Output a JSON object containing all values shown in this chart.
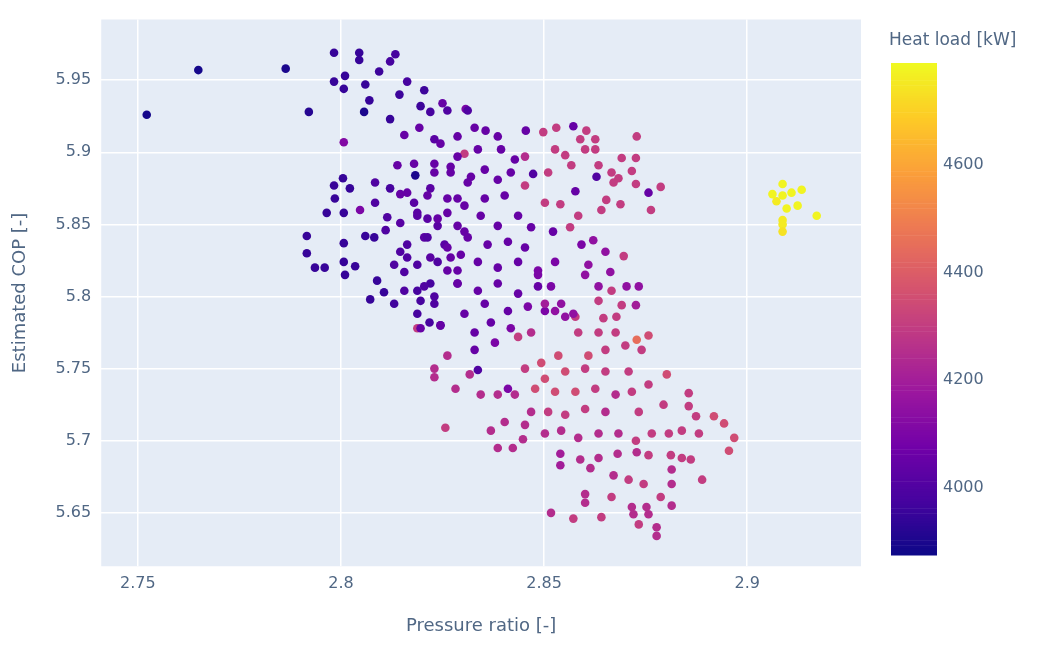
{
  "chart_data": {
    "type": "scatter",
    "xlabel": "Pressure ratio [-]",
    "ylabel": "Estimated COP [-]",
    "clabel": "Heat load [kW]",
    "xlim": [
      2.741,
      2.928
    ],
    "xticks": [
      2.75,
      2.8,
      2.85,
      2.9
    ],
    "ylim": [
      5.613,
      5.992
    ],
    "yticks": [
      5.65,
      5.7,
      5.75,
      5.8,
      5.85,
      5.9,
      5.95
    ],
    "clim": [
      3875,
      4790
    ],
    "cticks": [
      4000,
      4200,
      4400,
      4600
    ],
    "grid": true,
    "legend": false,
    "marker": "circle",
    "x": [
      2.7522,
      2.7649,
      2.7864,
      2.7921,
      2.7983,
      2.8045,
      2.8045,
      2.7983,
      2.801,
      2.8007,
      2.806,
      2.807,
      2.8057,
      2.8134,
      2.8121,
      2.8094,
      2.8163,
      2.8144,
      2.8205,
      2.8196,
      2.8007,
      2.822,
      2.8121,
      2.8156,
      2.8193,
      2.825,
      2.8307,
      2.8287,
      2.823,
      2.8005,
      2.7983,
      2.8022,
      2.7985,
      2.8007,
      2.7965,
      2.8047,
      2.7916,
      2.7916,
      2.7936,
      2.796,
      2.8007,
      2.8007,
      2.801,
      2.8035,
      2.806,
      2.8082,
      2.8084,
      2.8121,
      2.8146,
      2.818,
      2.8139,
      2.8183,
      2.8084,
      2.8114,
      2.811,
      2.8089,
      2.8072,
      2.8106,
      2.8131,
      2.8146,
      2.8163,
      2.8131,
      2.8156,
      2.8188,
      2.8196,
      2.822,
      2.8188,
      2.8218,
      2.8245,
      2.8188,
      2.823,
      2.818,
      2.8188,
      2.8213,
      2.822,
      2.823,
      2.827,
      2.8205,
      2.8238,
      2.8255,
      2.822,
      2.8262,
      2.8287,
      2.832,
      2.8304,
      2.827,
      2.8287,
      2.8262,
      2.8304,
      2.8295,
      2.8262,
      2.8312,
      2.8329,
      2.8356,
      2.8386,
      2.8455,
      2.8245,
      2.8287,
      2.8337,
      2.8394,
      2.8428,
      2.8453,
      2.8473,
      2.823,
      2.827,
      2.8312,
      2.8354,
      2.8386,
      2.8418,
      2.8163,
      2.8213,
      2.8262,
      2.8304,
      2.8354,
      2.8403,
      2.8453,
      2.8146,
      2.8188,
      2.8238,
      2.8287,
      2.8344,
      2.8386,
      2.8436,
      2.8468,
      2.8502,
      2.854,
      2.8163,
      2.8213,
      2.8262,
      2.8312,
      2.8361,
      2.8411,
      2.8453,
      2.8522,
      2.8188,
      2.8238,
      2.8287,
      2.8337,
      2.8386,
      2.8436,
      2.8485,
      2.8527,
      2.8156,
      2.8205,
      2.823,
      2.8287,
      2.8337,
      2.8386,
      2.8436,
      2.8485,
      2.8354,
      2.8411,
      2.846,
      2.8502,
      2.8196,
      2.8245,
      2.8304,
      2.8329,
      2.8369,
      2.8418,
      2.8468,
      2.8329,
      2.8379,
      2.8436,
      2.8498,
      2.853,
      2.8572,
      2.8604,
      2.8626,
      2.8589,
      2.8728,
      2.8527,
      2.8552,
      2.8601,
      2.8626,
      2.8691,
      2.8726,
      2.851,
      2.8567,
      2.8634,
      2.8666,
      2.8716,
      2.8683,
      2.8671,
      2.8726,
      2.8787,
      2.8757,
      2.8577,
      2.8629,
      2.8653,
      2.8688,
      2.8641,
      2.8763,
      2.8584,
      2.8564,
      2.8592,
      2.8621,
      2.8651,
      2.8696,
      2.8609,
      2.8663,
      2.8733,
      2.8703,
      2.8634,
      2.8666,
      2.8726,
      2.8691,
      2.8634,
      2.8678,
      2.8646,
      2.8577,
      2.8584,
      2.8634,
      2.8676,
      2.8757,
      2.8728,
      2.874,
      2.87,
      2.8651,
      2.8609,
      2.8535,
      2.8493,
      2.8453,
      2.8502,
      2.8552,
      2.8601,
      2.8651,
      2.8708,
      2.8802,
      2.8757,
      2.8716,
      2.8676,
      2.8626,
      2.8577,
      2.8527,
      2.8478,
      2.8428,
      2.8386,
      2.8344,
      2.8411,
      2.8317,
      2.8337,
      2.8262,
      2.823,
      2.823,
      2.8282,
      2.8257,
      2.8468,
      2.851,
      2.8552,
      2.8601,
      2.8651,
      2.8733,
      2.8794,
      2.8856,
      2.8856,
      2.8874,
      2.8918,
      2.8943,
      2.8968,
      2.8955,
      2.8839,
      2.8881,
      2.8807,
      2.8765,
      2.8726,
      2.8683,
      2.8634,
      2.8584,
      2.8542,
      2.8502,
      2.8453,
      2.8403,
      2.8369,
      2.8386,
      2.8423,
      2.8448,
      2.854,
      2.854,
      2.8589,
      2.8634,
      2.8681,
      2.8728,
      2.8757,
      2.8812,
      2.8839,
      2.8861,
      2.8614,
      2.8671,
      2.8708,
      2.8745,
      2.8814,
      2.8814,
      2.8889,
      2.8787,
      2.8814,
      2.8601,
      2.8601,
      2.8666,
      2.8716,
      2.872,
      2.8752,
      2.8757,
      2.8733,
      2.8777,
      2.8777,
      2.8517,
      2.8572,
      2.8641,
      2.8485,
      2.8517,
      2.8542,
      2.8572,
      2.8552,
      2.8527,
      2.8502,
      2.8601,
      2.9062,
      2.9087,
      2.9087,
      2.9109,
      2.9134,
      2.9072,
      2.9097,
      2.9124,
      2.9171,
      2.9087,
      2.9087,
      2.9087
    ],
    "values": [
      5.926,
      5.957,
      5.958,
      5.928,
      5.969,
      5.969,
      5.964,
      5.949,
      5.953,
      5.944,
      5.947,
      5.936,
      5.928,
      5.968,
      5.963,
      5.956,
      5.949,
      5.94,
      5.943,
      5.932,
      5.907,
      5.928,
      5.923,
      5.912,
      5.917,
      5.934,
      5.93,
      5.911,
      5.909,
      5.882,
      5.877,
      5.875,
      5.868,
      5.858,
      5.858,
      5.86,
      5.842,
      5.83,
      5.82,
      5.82,
      5.837,
      5.824,
      5.815,
      5.821,
      5.842,
      5.841,
      5.879,
      5.875,
      5.871,
      5.892,
      5.891,
      5.884,
      5.865,
      5.855,
      5.846,
      5.811,
      5.798,
      5.803,
      5.822,
      5.831,
      5.827,
      5.795,
      5.817,
      5.804,
      5.797,
      5.809,
      5.788,
      5.782,
      5.78,
      5.778,
      5.8,
      5.865,
      5.856,
      5.854,
      5.875,
      5.892,
      5.89,
      5.841,
      5.849,
      5.836,
      5.827,
      5.858,
      5.868,
      5.883,
      5.899,
      5.827,
      5.809,
      5.818,
      5.845,
      5.829,
      5.929,
      5.929,
      5.917,
      5.915,
      5.911,
      5.915,
      5.906,
      5.897,
      5.902,
      5.902,
      5.895,
      5.897,
      5.885,
      5.886,
      5.886,
      5.879,
      5.888,
      5.881,
      5.886,
      5.872,
      5.87,
      5.868,
      5.863,
      5.868,
      5.87,
      5.877,
      5.851,
      5.858,
      5.854,
      5.849,
      5.856,
      5.849,
      5.856,
      5.848,
      5.865,
      5.864,
      5.836,
      5.841,
      5.834,
      5.841,
      5.836,
      5.838,
      5.834,
      5.845,
      5.822,
      5.824,
      5.818,
      5.824,
      5.82,
      5.824,
      5.818,
      5.824,
      5.804,
      5.807,
      5.795,
      5.809,
      5.804,
      5.809,
      5.802,
      5.807,
      5.795,
      5.79,
      5.793,
      5.79,
      5.778,
      5.78,
      5.788,
      5.775,
      5.782,
      5.778,
      5.775,
      5.763,
      5.768,
      5.772,
      5.914,
      5.917,
      5.918,
      5.915,
      5.909,
      5.909,
      5.911,
      5.902,
      5.898,
      5.902,
      5.902,
      5.896,
      5.896,
      5.886,
      5.891,
      5.891,
      5.886,
      5.887,
      5.882,
      5.879,
      5.878,
      5.876,
      5.872,
      5.873,
      5.883,
      5.867,
      5.864,
      5.86,
      5.86,
      5.856,
      5.848,
      5.836,
      5.839,
      5.831,
      5.828,
      5.822,
      5.817,
      5.807,
      5.807,
      5.807,
      5.804,
      5.794,
      5.794,
      5.797,
      5.786,
      5.785,
      5.786,
      5.775,
      5.775,
      5.775,
      5.773,
      5.77,
      5.763,
      5.766,
      5.763,
      5.759,
      5.759,
      5.754,
      5.75,
      5.743,
      5.748,
      5.75,
      5.748,
      5.748,
      5.746,
      5.739,
      5.734,
      5.732,
      5.736,
      5.734,
      5.734,
      5.736,
      5.732,
      5.732,
      5.732,
      5.736,
      5.746,
      5.749,
      5.759,
      5.75,
      5.744,
      5.736,
      5.709,
      5.72,
      5.72,
      5.718,
      5.722,
      5.72,
      5.72,
      5.725,
      5.733,
      5.724,
      5.717,
      5.717,
      5.712,
      5.702,
      5.693,
      5.707,
      5.705,
      5.705,
      5.705,
      5.7,
      5.705,
      5.705,
      5.702,
      5.707,
      5.705,
      5.711,
      5.713,
      5.707,
      5.695,
      5.695,
      5.701,
      5.691,
      5.683,
      5.687,
      5.688,
      5.691,
      5.692,
      5.69,
      5.69,
      5.688,
      5.687,
      5.681,
      5.676,
      5.673,
      5.67,
      5.68,
      5.67,
      5.673,
      5.661,
      5.655,
      5.663,
      5.657,
      5.661,
      5.654,
      5.649,
      5.654,
      5.649,
      5.642,
      5.64,
      5.634,
      5.65,
      5.646,
      5.647,
      5.815,
      5.807,
      5.795,
      5.788,
      5.786,
      5.79,
      5.795,
      5.815,
      5.871,
      5.878,
      5.87,
      5.872,
      5.874,
      5.866,
      5.861,
      5.863,
      5.856,
      5.853,
      5.85,
      5.845
    ],
    "cvalues": [
      3890,
      3890,
      3900,
      3920,
      3950,
      3950,
      3950,
      3950,
      3950,
      3950,
      3950,
      3950,
      3900,
      3980,
      3980,
      3960,
      3980,
      3960,
      3960,
      3960,
      4120,
      3980,
      3950,
      4050,
      4050,
      4050,
      4100,
      4050,
      4020,
      3950,
      3950,
      3950,
      3950,
      3950,
      3950,
      4100,
      3950,
      3950,
      3950,
      3950,
      3950,
      3950,
      3950,
      3950,
      3950,
      3950,
      4000,
      3980,
      4050,
      4050,
      4050,
      3900,
      4000,
      4000,
      4000,
      3950,
      3950,
      3950,
      4000,
      4000,
      4000,
      3970,
      4000,
      3980,
      3980,
      3980,
      3980,
      3980,
      3980,
      4300,
      4000,
      4020,
      4020,
      4020,
      4020,
      4050,
      4050,
      4020,
      4020,
      4020,
      4020,
      4050,
      4050,
      4050,
      4300,
      4050,
      4050,
      4050,
      4050,
      4050,
      4000,
      4000,
      4050,
      4050,
      4050,
      4050,
      4050,
      4050,
      4050,
      4050,
      4050,
      4250,
      4000,
      4050,
      4050,
      4050,
      4050,
      4050,
      4050,
      4050,
      4050,
      4050,
      4050,
      4050,
      4050,
      4300,
      4020,
      4020,
      4050,
      4050,
      4050,
      4050,
      4050,
      4050,
      4300,
      4300,
      4000,
      4000,
      4050,
      4050,
      4050,
      4050,
      4050,
      4050,
      4000,
      4000,
      4050,
      4050,
      4050,
      4050,
      4100,
      4100,
      4000,
      4000,
      4000,
      4050,
      4050,
      4050,
      4050,
      4050,
      4050,
      4050,
      4100,
      4100,
      4050,
      4050,
      4050,
      4050,
      4050,
      4100,
      4250,
      4050,
      4100,
      4300,
      4300,
      4300,
      4050,
      4300,
      4300,
      4300,
      4300,
      4300,
      4300,
      4300,
      4300,
      4300,
      4300,
      4300,
      4300,
      4300,
      4300,
      4300,
      4300,
      4300,
      4300,
      4300,
      4050,
      4050,
      4000,
      4300,
      4300,
      4300,
      4300,
      4300,
      4300,
      4100,
      4150,
      4150,
      4300,
      4150,
      4150,
      4150,
      4150,
      4150,
      4300,
      4200,
      4300,
      4300,
      4300,
      4300,
      4300,
      4300,
      4300,
      4300,
      4350,
      4450,
      4300,
      4300,
      4300,
      4350,
      4350,
      4350,
      4300,
      4350,
      4350,
      4300,
      4300,
      4300,
      4350,
      4300,
      4300,
      4250,
      4300,
      4350,
      4350,
      4350,
      4250,
      4250,
      4250,
      4100,
      4250,
      4000,
      4250,
      4250,
      4250,
      4250,
      4300,
      4250,
      4300,
      4300,
      4300,
      4250,
      4300,
      4300,
      4300,
      4300,
      4300,
      4350,
      4350,
      4350,
      4350,
      4300,
      4300,
      4300,
      4300,
      4300,
      4250,
      4250,
      4250,
      4250,
      4250,
      4250,
      4250,
      4250,
      4250,
      4250,
      4250,
      4200,
      4200,
      4250,
      4250,
      4250,
      4250,
      4300,
      4300,
      4300,
      4300,
      4250,
      4250,
      4300,
      4300,
      4250,
      4250,
      4300,
      4300,
      4250,
      4250,
      4250,
      4300,
      4250,
      4250,
      4250,
      4250,
      4300,
      4250,
      4250,
      4250,
      4300,
      4300,
      4100,
      4100,
      4150,
      4150,
      4150,
      4150,
      4200,
      4150,
      4780,
      4780,
      4780,
      4780,
      4780,
      4760,
      4780,
      4780,
      4780,
      4760,
      4760,
      4740
    ]
  }
}
